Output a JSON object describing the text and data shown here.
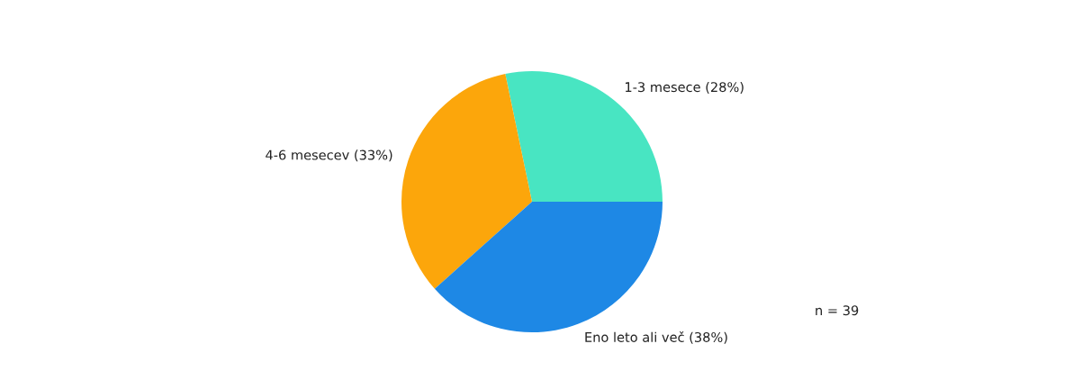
{
  "chart_data": {
    "type": "pie",
    "categories": [
      "1-3 mesece (28%)",
      "4-6 mesecev (33%)",
      "Eno leto ali več (38%)"
    ],
    "values": [
      28,
      33,
      38
    ],
    "colors": [
      "#48e5c2",
      "#fca60b",
      "#1e88e5"
    ],
    "annotations": [
      "n = 39"
    ]
  }
}
